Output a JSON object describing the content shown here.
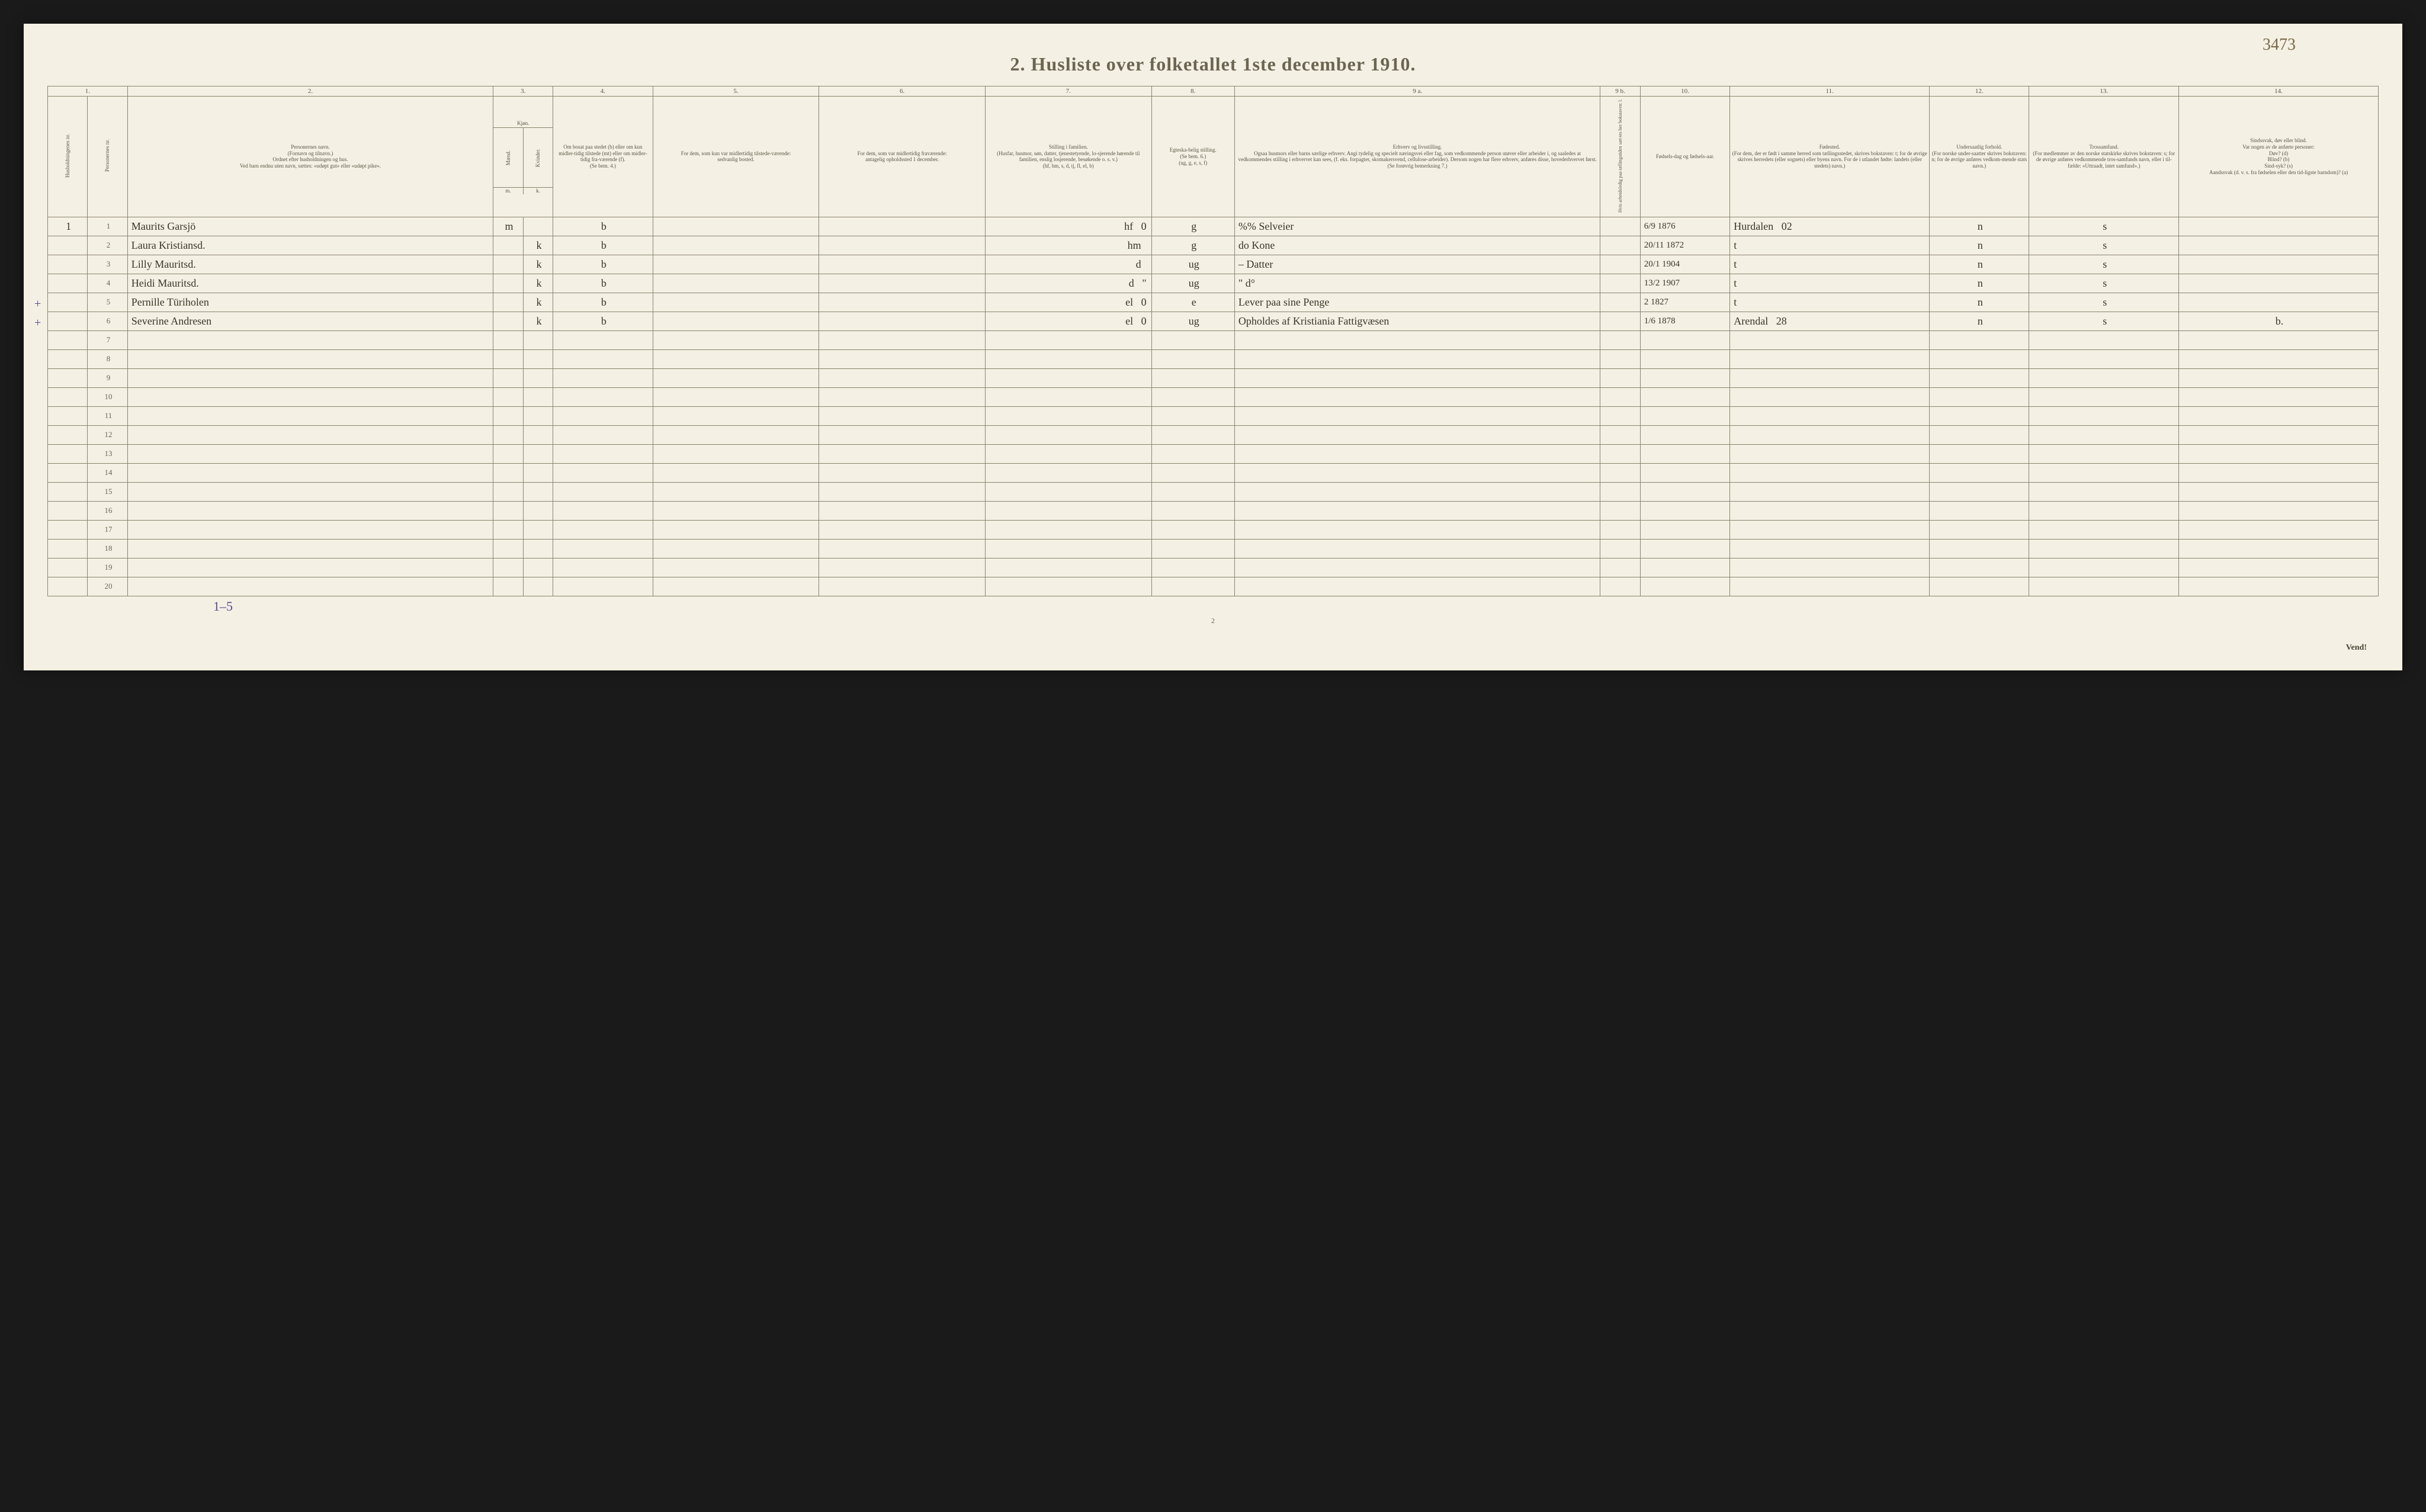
{
  "handwritten_topright": "3473",
  "title": "2.  Husliste over folketallet 1ste december 1910.",
  "colnums": [
    "1.",
    "",
    "2.",
    "3.",
    "4.",
    "5.",
    "6.",
    "7.",
    "8.",
    "9 a.",
    "9 b.",
    "10.",
    "11.",
    "12.",
    "13.",
    "14."
  ],
  "col3_sub": {
    "m": "Mænd.",
    "k": "Kvinder."
  },
  "col3_bottom": [
    "m.",
    "k."
  ],
  "headers": {
    "c1": "Husholdningenes nr.",
    "c1b": "Personernes nr.",
    "c2": "Personernes navn.\n(Fornavn og tilnavn.)\nOrdnet efter husholdningen og hus.\nVed barn endnu uten navn, sættes: «udøpt gut» eller «udøpt pike».",
    "c3": "Kjøn.",
    "c4": "Om bosat paa stedet (b) eller om kun midler-tidig tilstede (mt) eller om midler-tidig fra-værende (f).\n(Se bem. 4.)",
    "c5": "For dem, som kun var midlertidig tilstede-værende:\nsedvanlig bosted.",
    "c6": "For dem, som var midlertidig fraværende:\nantagelig opholdssted 1 december.",
    "c7": "Stilling i familien.\n(Husfar, husmor, søn, datter, tjenestetyende, lo-sjerende hørende til familien, enslig losjerende, besøkende o. s. v.)\n(hf, hm, s, d, tj, fl, el, b)",
    "c8": "Egteska-belig stilling.\n(Se bem. 6.)\n(ug, g, e, s, f)",
    "c9a": "Erhverv og livsstilling.\nOgsaa husmors eller barns særlige erhverv. Angi tydelig og specielt næringsvei eller fag, som vedkommende person utøver eller arbeider i, og saaledes at vedkommendes stilling i erhvervet kan sees, (f. eks. forpagter, skomakersvend, cellulose-arbeider). Dersom nogen har flere erhverv, anføres disse, hovederhvervet først.\n(Se forøvrig bemerkning 7.)",
    "c9b": "Hvis arbeidsledig paa tællingstiden sæt-tes her bokstaven: l.",
    "c10": "Fødsels-dag og fødsels-aar.",
    "c11": "Fødested.\n(For dem, der er født i samme herred som tællingsstedet, skrives bokstaven: t; for de øvrige skrives herredets (eller sognets) eller byens navn. For de i utlandet fødte: landets (eller stedets) navn.)",
    "c12": "Undersaatlig forhold.\n(For norske under-saatter skrives bokstaven: n; for de øvrige anføres vedkom-mende stats navn.)",
    "c13": "Trossamfund.\n(For medlemmer av den norske statskirke skrives bokstaven: s; for de øvrige anføres vedkommende tros-samfunds navn, eller i til-fælde: «Uttraadt, intet samfund».)",
    "c14": "Sindssvak, døv eller blind.\nVar nogen av de anførte personer:\nDøv?        (d)\nBlind?       (b)\nSind-syk?  (s)\nAandssvak (d. v. s. fra fødselen eller den tid-ligste barndom)?  (a)"
  },
  "rows": [
    {
      "hh": "1",
      "n": "1",
      "name": "Maurits Garsjö",
      "mk": "m",
      "b": "b",
      "c7": "hf",
      "c7b": "0",
      "c8": "g",
      "c9": "%%  Selveier",
      "c10": "6/9 1876",
      "c11": "Hurdalen",
      "c11b": "02",
      "c12": "n",
      "c13": "s",
      "c14": ""
    },
    {
      "hh": "",
      "n": "2",
      "name": "Laura Kristiansd.",
      "mk": "k",
      "b": "b",
      "c7": "hm",
      "c7b": "",
      "c8": "g",
      "c9": "do    Kone",
      "c10": "20/11 1872",
      "c11": "t",
      "c11b": "",
      "c12": "n",
      "c13": "s",
      "c14": ""
    },
    {
      "hh": "",
      "n": "3",
      "name": "Lilly Mauritsd.",
      "mk": "k",
      "b": "b",
      "c7": "d",
      "c7b": "",
      "c8": "ug",
      "c9": "–    Datter",
      "c10": "20/1 1904",
      "c11": "t",
      "c11b": "",
      "c12": "n",
      "c13": "s",
      "c14": ""
    },
    {
      "hh": "",
      "n": "4",
      "name": "Heidi Mauritsd.",
      "mk": "k",
      "b": "b",
      "c7": "d",
      "c7b": "\"",
      "c8": "ug",
      "c9": "\"    d°",
      "c10": "13/2 1907",
      "c11": "t",
      "c11b": "",
      "c12": "n",
      "c13": "s",
      "c14": ""
    },
    {
      "hh": "",
      "n": "5",
      "name": "Pernille Türiholen",
      "mk": "k",
      "b": "b",
      "c7": "el",
      "c7b": "0",
      "c8": "e",
      "c9": "Lever paa sine Penge",
      "c10": "2 1827",
      "c11": "t",
      "c11b": "",
      "c12": "n",
      "c13": "s",
      "c14": ""
    },
    {
      "hh": "",
      "n": "6",
      "name": "Severine Andresen",
      "mk": "k",
      "b": "b",
      "c7": "el",
      "c7b": "0",
      "c8": "ug",
      "c9": "Opholdes af Kristiania Fattigvæsen",
      "c10": "1/6 1878",
      "c11": "Arendal",
      "c11b": "28",
      "c12": "n",
      "c13": "s",
      "c14": "b."
    }
  ],
  "empty_rows": [
    7,
    8,
    9,
    10,
    11,
    12,
    13,
    14,
    15,
    16,
    17,
    18,
    19,
    20
  ],
  "plus_marks": [
    5,
    6
  ],
  "bottom_annotation": "1–5",
  "page_number": "2",
  "vend": "Vend!",
  "colwidths": [
    "24",
    "24",
    "220",
    "18",
    "18",
    "60",
    "100",
    "100",
    "100",
    "50",
    "220",
    "24",
    "54",
    "120",
    "60",
    "90",
    "120"
  ],
  "colors": {
    "paper": "#f4f0e4",
    "ink_print": "#6b6552",
    "ink_hand": "#3a3525",
    "ink_purple": "#5a4a8a",
    "border": "#8a836d",
    "page_bg": "#1a1a1a"
  }
}
